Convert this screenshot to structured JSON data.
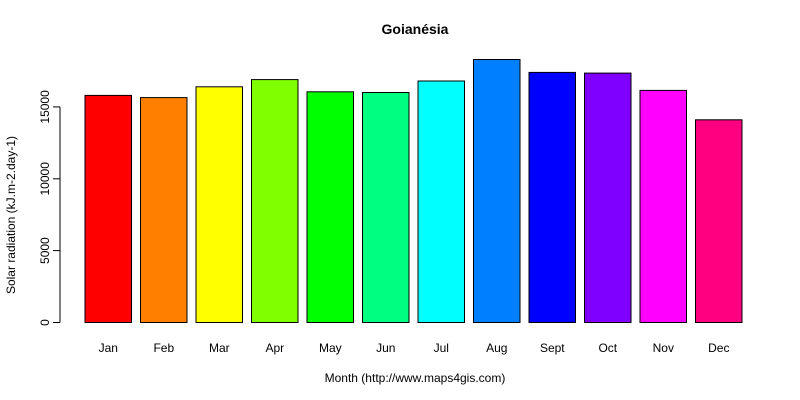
{
  "title": "Goianésia",
  "chart_data": {
    "type": "bar",
    "title": "Goianésia",
    "xlabel": "Month (http://www.maps4gis.com)",
    "ylabel": "Solar radiation (kJ.m-2.day-1)",
    "categories": [
      "Jan",
      "Feb",
      "Mar",
      "Apr",
      "May",
      "Jun",
      "Jul",
      "Aug",
      "Sept",
      "Oct",
      "Nov",
      "Dec"
    ],
    "values": [
      15800,
      15650,
      16400,
      16900,
      16050,
      16000,
      16800,
      18300,
      17400,
      17350,
      16150,
      14100
    ],
    "bar_colors": [
      "#FF0000",
      "#FF8000",
      "#FFFF00",
      "#80FF00",
      "#00FF00",
      "#00FF80",
      "#00FFFF",
      "#0080FF",
      "#0000FF",
      "#8000FF",
      "#FF00FF",
      "#FF0080"
    ],
    "bar_border_color": "#000000",
    "axis_color": "#000000",
    "background_color": "#FFFFFF",
    "yticks": [
      0,
      5000,
      10000,
      15000
    ],
    "ylim": [
      0,
      18600
    ],
    "grid": false,
    "legend": null,
    "ylabel_rotation": -90,
    "ytick_label_rotation": -90
  }
}
